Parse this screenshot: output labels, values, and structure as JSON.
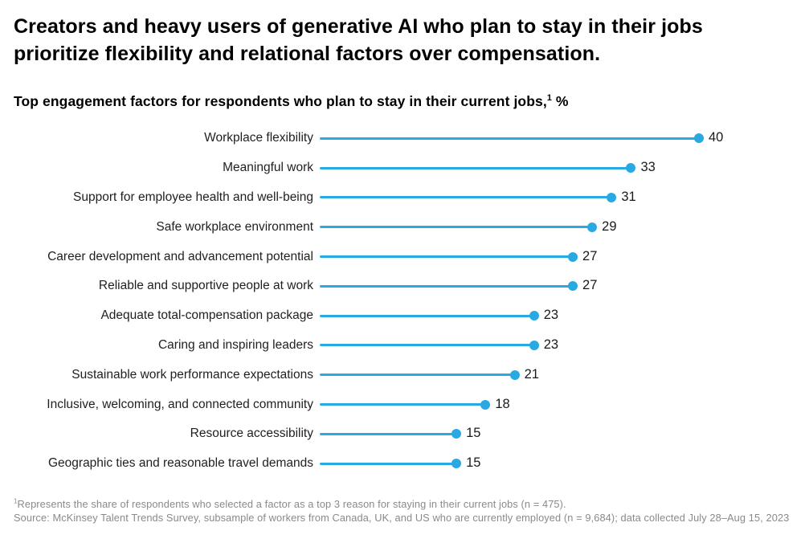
{
  "header": {
    "title": "Creators and heavy users of generative AI who plan to stay in their jobs prioritize flexibility and relational factors over compensation.",
    "subtitle_text": "Top engagement factors for respondents who plan to stay in their current jobs,",
    "subtitle_sup": "1",
    "subtitle_unit": "%"
  },
  "chart_data": {
    "type": "bar",
    "variant": "lollipop-dot",
    "orientation": "horizontal",
    "title": "Top engagement factors for respondents who plan to stay in their current jobs, %",
    "categories": [
      "Workplace flexibility",
      "Meaningful work",
      "Support for employee health and well-being",
      "Safe workplace environment",
      "Career development and advancement potential",
      "Reliable and supportive people at work",
      "Adequate total-compensation package",
      "Caring and inspiring leaders",
      "Sustainable work performance expectations",
      "Inclusive, welcoming, and connected community",
      "Resource accessibility",
      "Geographic ties and reasonable travel demands"
    ],
    "values": [
      40,
      33,
      31,
      29,
      27,
      27,
      23,
      23,
      21,
      18,
      15,
      15
    ],
    "xlim": [
      0,
      48
    ],
    "grid": false,
    "legend": false,
    "value_labels": "right-of-dot",
    "accent_color": "#29a9e1",
    "xlabel": "",
    "ylabel": ""
  },
  "footnotes": {
    "note1_sup": "1",
    "note1_text": "Represents the share of respondents who selected a factor as a top 3 reason for staying in their current jobs (n = 475).",
    "source_text": "Source: McKinsey Talent Trends Survey, subsample of workers from Canada, UK, and US who are currently employed (n = 9,684); data collected July 28–Aug 15, 2023"
  }
}
